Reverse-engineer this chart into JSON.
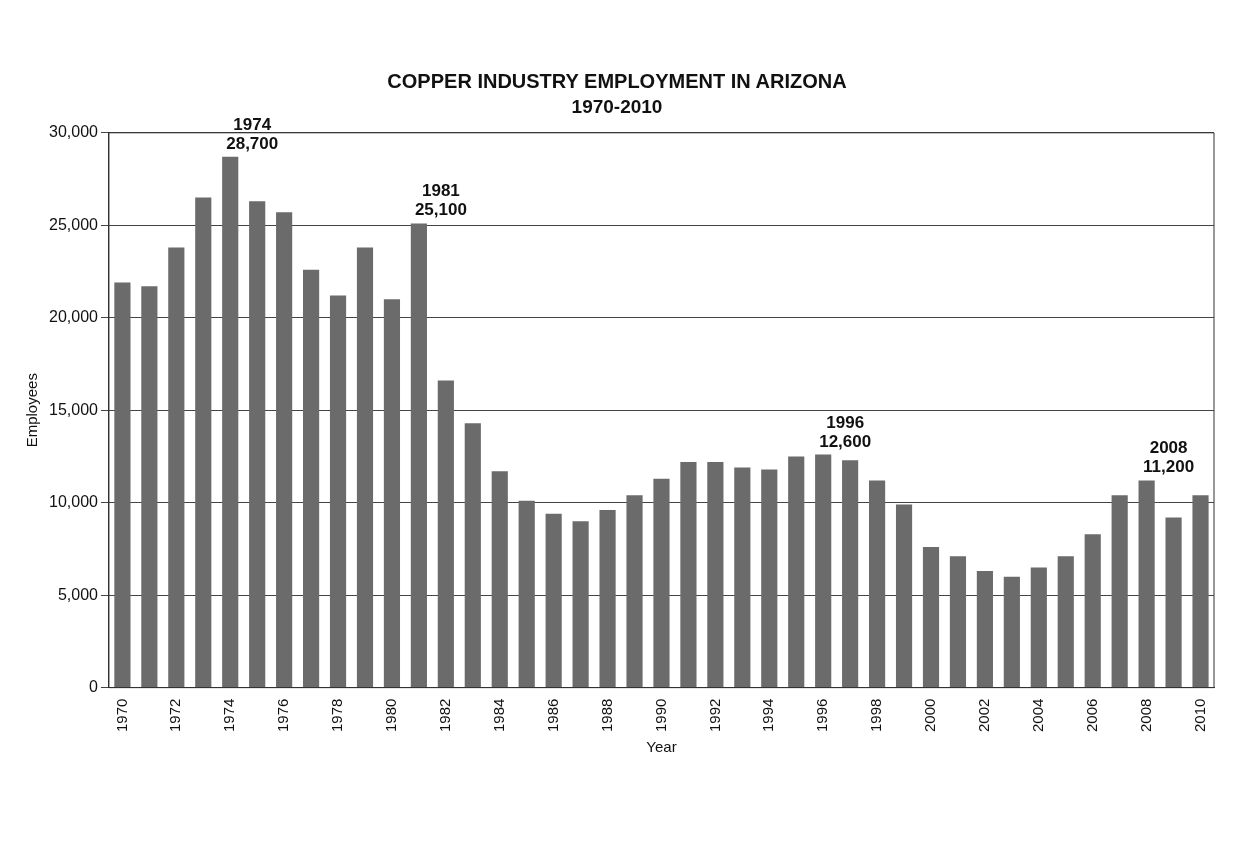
{
  "chart_data": {
    "type": "bar",
    "title": "COPPER INDUSTRY EMPLOYMENT IN ARIZONA",
    "subtitle": "1970-2010",
    "xlabel": "Year",
    "ylabel": "Employees",
    "x": [
      1970,
      1971,
      1972,
      1973,
      1974,
      1975,
      1976,
      1977,
      1978,
      1979,
      1980,
      1981,
      1982,
      1983,
      1984,
      1985,
      1986,
      1987,
      1988,
      1989,
      1990,
      1991,
      1992,
      1993,
      1994,
      1995,
      1996,
      1997,
      1998,
      1999,
      2000,
      2001,
      2002,
      2003,
      2004,
      2005,
      2006,
      2007,
      2008,
      2009,
      2010
    ],
    "values": [
      21900,
      21700,
      23800,
      26500,
      28700,
      26300,
      25700,
      22600,
      21200,
      23800,
      21000,
      25100,
      16600,
      14300,
      11700,
      10100,
      9400,
      9000,
      9600,
      10400,
      11300,
      12200,
      12200,
      11900,
      11800,
      12500,
      12600,
      12300,
      11200,
      9900,
      7600,
      7100,
      6300,
      6000,
      6500,
      7100,
      8300,
      10400,
      11200,
      9200,
      10400
    ],
    "color": "#6b6b6b",
    "xlim": [
      1969.5,
      2010.5
    ],
    "xticks": [
      1970,
      1972,
      1974,
      1976,
      1978,
      1980,
      1982,
      1984,
      1986,
      1988,
      1990,
      1992,
      1994,
      1996,
      1998,
      2000,
      2002,
      2004,
      2006,
      2008,
      2010
    ],
    "ylim": [
      0,
      30000
    ],
    "yticks": [
      {
        "value": 0,
        "label": "0"
      },
      {
        "value": 5000,
        "label": "5,000"
      },
      {
        "value": 10000,
        "label": "10,000"
      },
      {
        "value": 15000,
        "label": "15,000"
      },
      {
        "value": 20000,
        "label": "20,000"
      },
      {
        "value": 25000,
        "label": "25,000"
      },
      {
        "value": 30000,
        "label": "30,000"
      }
    ],
    "grid": "y",
    "legend": false,
    "annotations": [
      {
        "text": "1974\n28,700",
        "x": 1974,
        "y": 28700
      },
      {
        "text": "1981\n25,100",
        "x": 1981,
        "y": 25100
      },
      {
        "text": "1996\n12,600",
        "x": 1996,
        "y": 12600
      },
      {
        "text": "2008\n11,200",
        "x": 2008,
        "y": 11200
      }
    ]
  }
}
